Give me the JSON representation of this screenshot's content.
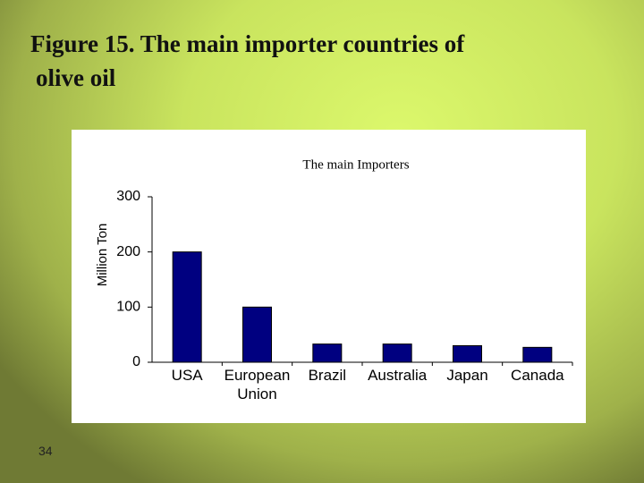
{
  "slide": {
    "title_lines": [
      "Figure 15. The main importer countries of",
      "olive oil"
    ],
    "number": "34"
  },
  "chart_data": {
    "type": "bar",
    "title": "The main Importers",
    "y_label": "Million Ton",
    "categories": [
      "USA",
      "European Union",
      "Brazil",
      "Australia",
      "Japan",
      "Canada"
    ],
    "values": [
      200,
      100,
      33,
      33,
      30,
      27
    ],
    "color": "#000080",
    "ylim": [
      0,
      300
    ],
    "yticks": [
      0,
      100,
      200,
      300
    ],
    "grid": false
  }
}
